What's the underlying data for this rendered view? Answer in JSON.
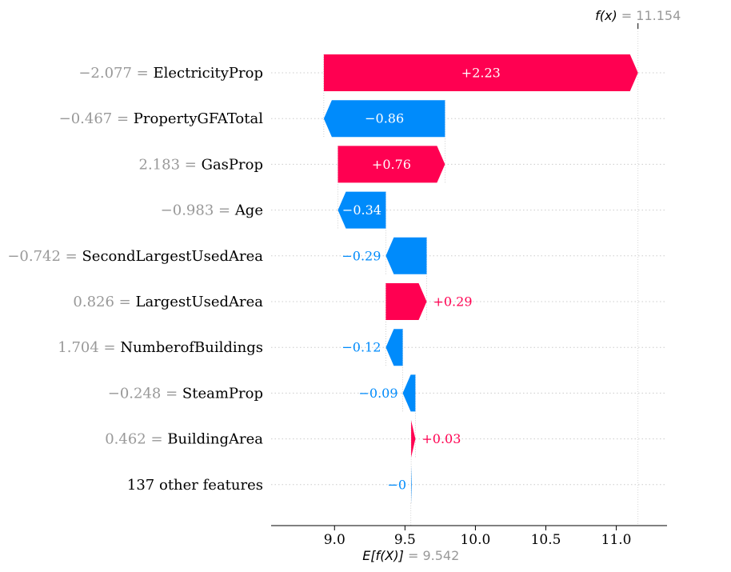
{
  "chart_data": {
    "type": "waterfall",
    "base_value": 9.542,
    "final_value": 11.154,
    "base_label": "E[f(X)]",
    "base_value_text": "= 9.542",
    "final_label": "f(x)",
    "final_value_text": "= 11.154",
    "x_ticks": [
      9.0,
      9.5,
      10.0,
      10.5,
      11.0
    ],
    "x_tick_labels": [
      "9.0",
      "9.5",
      "10.0",
      "10.5",
      "11.0"
    ],
    "xlim": [
      8.55,
      11.36
    ],
    "features": [
      {
        "value_text": "−2.077",
        "name": "ElectricityProp",
        "contribution": 2.23,
        "contribution_text": "+2.23"
      },
      {
        "value_text": "−0.467",
        "name": "PropertyGFATotal",
        "contribution": -0.86,
        "contribution_text": "−0.86"
      },
      {
        "value_text": "2.183",
        "name": "GasProp",
        "contribution": 0.76,
        "contribution_text": "+0.76"
      },
      {
        "value_text": "−0.983",
        "name": "Age",
        "contribution": -0.34,
        "contribution_text": "−0.34"
      },
      {
        "value_text": "−0.742",
        "name": "SecondLargestUsedArea",
        "contribution": -0.29,
        "contribution_text": "−0.29"
      },
      {
        "value_text": "0.826",
        "name": "LargestUsedArea",
        "contribution": 0.29,
        "contribution_text": "+0.29"
      },
      {
        "value_text": "1.704",
        "name": "NumberofBuildings",
        "contribution": -0.12,
        "contribution_text": "−0.12"
      },
      {
        "value_text": "−0.248",
        "name": "SteamProp",
        "contribution": -0.09,
        "contribution_text": "−0.09"
      },
      {
        "value_text": "0.462",
        "name": "BuildingArea",
        "contribution": 0.03,
        "contribution_text": "+0.03"
      },
      {
        "value_text": "",
        "name": "137 other features",
        "contribution": -0.004,
        "contribution_text": "−0"
      }
    ],
    "colors": {
      "positive": "#ff0051",
      "negative": "#008bfb",
      "value_label": "#999999",
      "grid": "#cccccc"
    }
  }
}
